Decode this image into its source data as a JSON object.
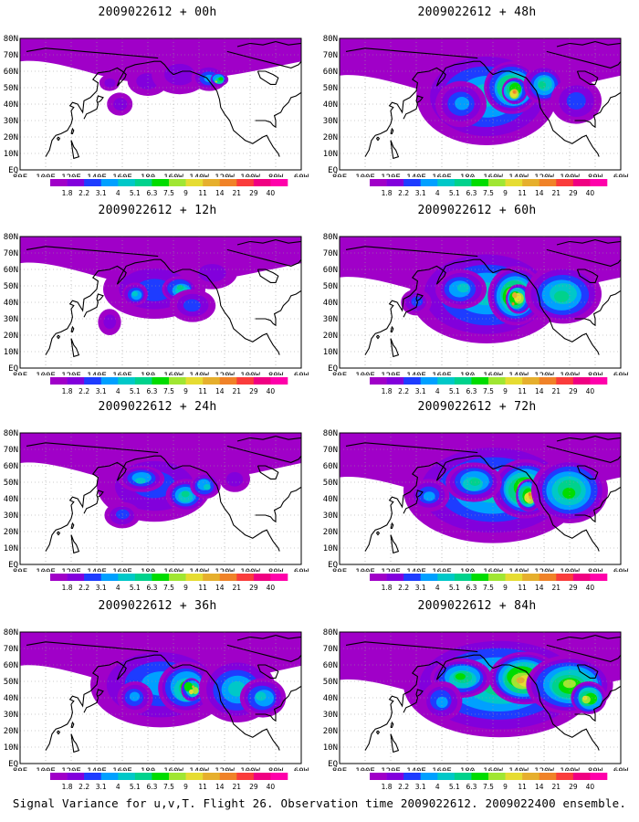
{
  "panels": [
    {
      "title": "2009022612 + 00h",
      "hours": 0
    },
    {
      "title": "2009022612 + 48h",
      "hours": 48
    },
    {
      "title": "2009022612 + 12h",
      "hours": 12
    },
    {
      "title": "2009022612 + 60h",
      "hours": 60
    },
    {
      "title": "2009022612 + 24h",
      "hours": 24
    },
    {
      "title": "2009022612 + 72h",
      "hours": 72
    },
    {
      "title": "2009022612 + 36h",
      "hours": 36
    },
    {
      "title": "2009022612 + 84h",
      "hours": 84
    }
  ],
  "lon_labels": [
    "80E",
    "100E",
    "120E",
    "140E",
    "160E",
    "180",
    "160W",
    "140W",
    "120W",
    "100W",
    "80W",
    "60W"
  ],
  "lat_labels": [
    "EQ",
    "10N",
    "20N",
    "30N",
    "40N",
    "50N",
    "60N",
    "70N",
    "80N"
  ],
  "colorbar": {
    "labels": [
      "1.8",
      "2.2",
      "3.1",
      "4",
      "5.1",
      "6.3",
      "7.5",
      "9",
      "11",
      "14",
      "21",
      "29",
      "40"
    ],
    "colors": [
      "#a000c8",
      "#8200dc",
      "#1e3cff",
      "#00a0ff",
      "#00c8c8",
      "#00d28c",
      "#00dc00",
      "#a0e632",
      "#e6dc32",
      "#e6af2d",
      "#f08228",
      "#fa3c3c",
      "#f00082",
      "#ff00aa"
    ]
  },
  "caption": "Signal Variance for u,v,T. Flight 26. Observation time 2009022612. 2009022400 ensemble."
}
